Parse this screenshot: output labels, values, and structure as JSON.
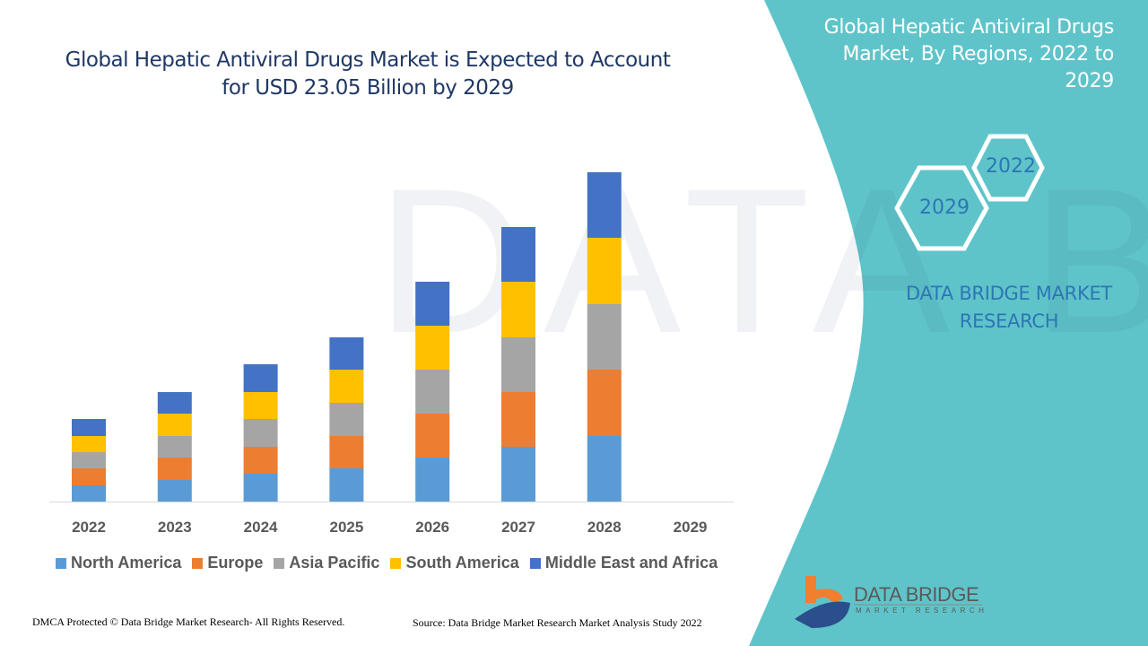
{
  "title": "Global Hepatic Antiviral Drugs Market is Expected to Account for USD 23.05 Billion by 2029",
  "side_panel": {
    "title": "Global Hepatic Antiviral Drugs Market, By Regions, 2022 to 2029",
    "hex_start": "2022",
    "hex_end": "2029",
    "brand": "DATA BRIDGE MARKET RESEARCH",
    "logo_text": "DATA BRIDGE",
    "logo_sub": "MARKET RESEARCH",
    "accent_color": "#5fc4c9"
  },
  "footer": {
    "left": "DMCA Protected © Data Bridge Market Research- All Rights Reserved.",
    "right": "Source: Data Bridge Market Research Market Analysis Study 2022"
  },
  "chart_data": {
    "type": "bar",
    "stacked": true,
    "title": "Global Hepatic Antiviral Drugs Market is Expected to Account for USD 23.05 Billion by 2029",
    "categories": [
      "2022",
      "2023",
      "2024",
      "2025",
      "2026",
      "2027",
      "2028",
      "2029"
    ],
    "legend_position": "bottom",
    "grid": false,
    "y_axis_shown": false,
    "ylim": [
      0,
      40
    ],
    "series": [
      {
        "name": "North America",
        "color": "#5b9bd5",
        "values": [
          1.8,
          2.4,
          3.1,
          3.7,
          4.9,
          6.1,
          7.3,
          null
        ]
      },
      {
        "name": "Europe",
        "color": "#ed7d31",
        "values": [
          1.9,
          2.5,
          3.0,
          3.6,
          4.9,
          6.1,
          7.4,
          null
        ]
      },
      {
        "name": "Asia Pacific",
        "color": "#a5a5a5",
        "values": [
          1.8,
          2.4,
          3.1,
          3.7,
          4.9,
          6.1,
          7.3,
          null
        ]
      },
      {
        "name": "South America",
        "color": "#ffc000",
        "values": [
          1.8,
          2.5,
          3.0,
          3.7,
          4.9,
          6.2,
          7.4,
          null
        ]
      },
      {
        "name": "Middle East and Africa",
        "color": "#4472c4",
        "values": [
          1.9,
          2.4,
          3.1,
          3.6,
          4.9,
          6.1,
          7.3,
          null
        ]
      }
    ]
  }
}
